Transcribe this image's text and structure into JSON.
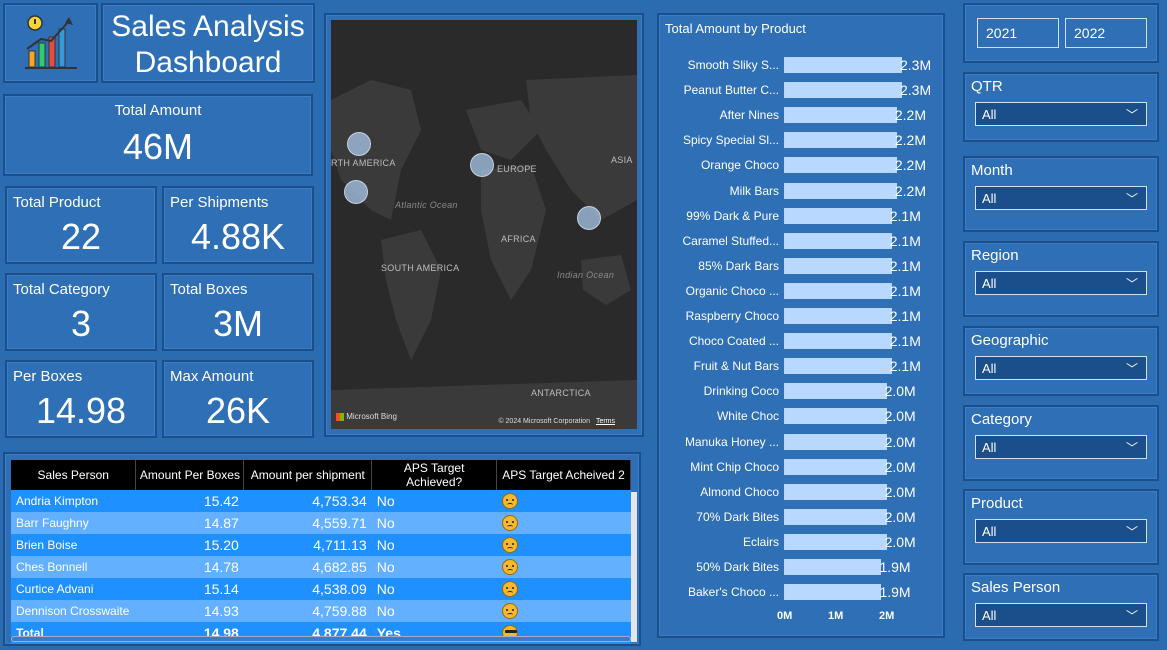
{
  "header": {
    "title_line1": "Sales Analysis",
    "title_line2": "Dashboard",
    "logo_icon": "chart-growth-icon"
  },
  "kpis": {
    "total_amount": {
      "label": "Total Amount",
      "value": "46M"
    },
    "total_product": {
      "label": "Total Product",
      "value": "22"
    },
    "per_shipments": {
      "label": "Per Shipments",
      "value": "4.88K"
    },
    "total_category": {
      "label": "Total Category",
      "value": "3"
    },
    "total_boxes": {
      "label": "Total Boxes",
      "value": "3M"
    },
    "per_boxes": {
      "label": "Per Boxes",
      "value": "14.98"
    },
    "max_amount": {
      "label": "Max Amount",
      "value": "26K"
    }
  },
  "map": {
    "labels": {
      "north_america": "RTH AMERICA",
      "europe": "EUROPE",
      "asia": "ASIA",
      "atlantic": "Atlantic Ocean",
      "africa": "AFRICA",
      "south_america": "SOUTH AMERICA",
      "indian": "Indian Ocean",
      "antarctica": "ANTARCTICA"
    },
    "attribution": "Microsoft Bing",
    "copyright": "© 2024 Microsoft Corporation",
    "terms": "Terms"
  },
  "chart_data": {
    "type": "bar",
    "title": "Total Amount by Product",
    "categories": [
      "Smooth Sliky S...",
      "Peanut Butter C...",
      "After Nines",
      "Spicy Special Sl...",
      "Orange Choco",
      "Milk Bars",
      "99% Dark & Pure",
      "Caramel Stuffed...",
      "85% Dark Bars",
      "Organic Choco ...",
      "Raspberry Choco",
      "Choco Coated ...",
      "Fruit & Nut Bars",
      "Drinking Coco",
      "White Choc",
      "Manuka Honey ...",
      "Mint Chip Choco",
      "Almond Choco",
      "70% Dark Bites",
      "Eclairs",
      "50% Dark Bites",
      "Baker's Choco ..."
    ],
    "values": [
      2.3,
      2.3,
      2.2,
      2.2,
      2.2,
      2.2,
      2.1,
      2.1,
      2.1,
      2.1,
      2.1,
      2.1,
      2.1,
      2.0,
      2.0,
      2.0,
      2.0,
      2.0,
      2.0,
      2.0,
      1.9,
      1.9
    ],
    "value_labels": [
      "2.3M",
      "2.3M",
      "2.2M",
      "2.2M",
      "2.2M",
      "2.2M",
      "2.1M",
      "2.1M",
      "2.1M",
      "2.1M",
      "2.1M",
      "2.1M",
      "2.1M",
      "2.0M",
      "2.0M",
      "2.0M",
      "2.0M",
      "2.0M",
      "2.0M",
      "2.0M",
      "1.9M",
      "1.9M"
    ],
    "unit": "M",
    "xlim": [
      0,
      2.3
    ],
    "x_ticks": [
      "0M",
      "1M",
      "2M"
    ],
    "bar_color": "#b9d8ff"
  },
  "slicers": {
    "years": [
      "2021",
      "2022"
    ],
    "qtr": {
      "label": "QTR",
      "value": "All"
    },
    "month": {
      "label": "Month",
      "value": "All"
    },
    "region": {
      "label": "Region",
      "value": "All"
    },
    "geographic": {
      "label": "Geographic",
      "value": "All"
    },
    "category": {
      "label": "Category",
      "value": "All"
    },
    "product": {
      "label": "Product",
      "value": "All"
    },
    "sales_person": {
      "label": "Sales Person",
      "value": "All"
    }
  },
  "table": {
    "columns": [
      "Sales Person",
      "Amount Per Boxes",
      "Amount per shipment",
      "APS Target Achieved?",
      "APS Target Acheived 2"
    ],
    "rows": [
      {
        "name": "Andria Kimpton",
        "apb": "15.42",
        "aps": "4,753.34",
        "target": "No",
        "emoji": "sad"
      },
      {
        "name": "Barr Faughny",
        "apb": "14.87",
        "aps": "4,559.71",
        "target": "No",
        "emoji": "sad"
      },
      {
        "name": "Brien Boise",
        "apb": "15.20",
        "aps": "4,711.13",
        "target": "No",
        "emoji": "sad"
      },
      {
        "name": "Ches Bonnell",
        "apb": "14.78",
        "aps": "4,682.85",
        "target": "No",
        "emoji": "sad"
      },
      {
        "name": "Curtice Advani",
        "apb": "15.14",
        "aps": "4,538.09",
        "target": "No",
        "emoji": "sad"
      },
      {
        "name": "Dennison Crosswaite",
        "apb": "14.93",
        "aps": "4,759.88",
        "target": "No",
        "emoji": "sad"
      }
    ],
    "total": {
      "name": "Total",
      "apb": "14.98",
      "aps": "4,877.44",
      "target": "Yes",
      "emoji": "cool"
    }
  },
  "colors": {
    "background": "#2b6cb0",
    "card": "#2e6fb5",
    "row_dark": "#1e90ff",
    "row_light": "#62b0ff",
    "bar": "#b9d8ff"
  }
}
